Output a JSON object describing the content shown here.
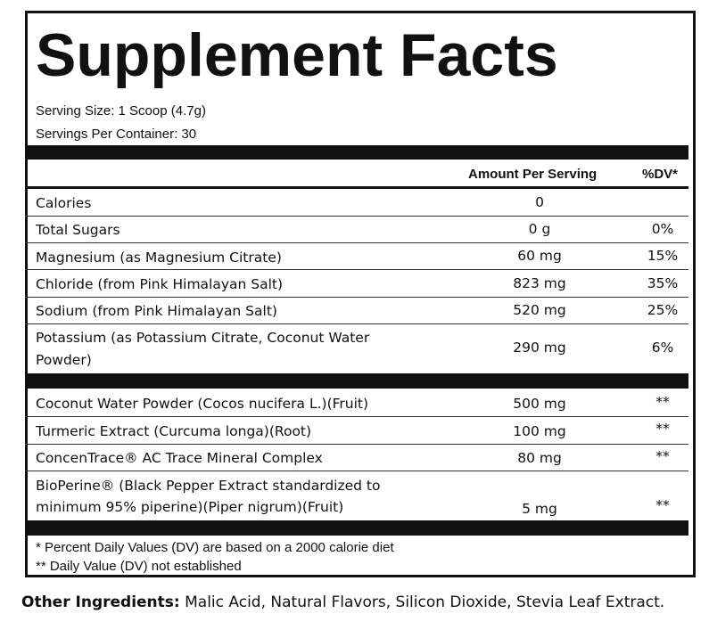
{
  "label": {
    "title": "Supplement Facts",
    "serving_size": "Serving Size: 1 Scoop (4.7g)",
    "servings_per_container": "Servings Per Container: 30",
    "header_amount": "Amount Per Serving",
    "header_dv": "%DV*",
    "nutrients": [
      {
        "name": "Calories",
        "amount": "0",
        "dv": ""
      },
      {
        "name": "Total Sugars",
        "amount": "0 g",
        "dv": "0%"
      },
      {
        "name": "Magnesium (as Magnesium Citrate)",
        "amount": "60 mg",
        "dv": "15%"
      },
      {
        "name": "Chloride (from Pink Himalayan Salt)",
        "amount": "823 mg",
        "dv": "35%"
      },
      {
        "name": "Sodium (from Pink Himalayan Salt)",
        "amount": "520 mg",
        "dv": "25%"
      },
      {
        "name_line1": "Potassium (as Potassium Citrate, Coconut Water",
        "name_line2": "Powder)",
        "amount": "290 mg",
        "dv": "6%"
      }
    ],
    "ingredients": [
      {
        "name": "Coconut Water Powder (Cocos nucifera L.)(Fruit)",
        "amount": "500 mg",
        "dv": "**"
      },
      {
        "name": "Turmeric Extract (Curcuma longa)(Root)",
        "amount": "100 mg",
        "dv": "**"
      },
      {
        "name": "ConcenTrace® AC Trace Mineral Complex",
        "amount": "80 mg",
        "dv": "**"
      },
      {
        "name_line1": "BioPerine® (Black Pepper Extract standardized to",
        "name_line2": "minimum 95% piperine)(Piper nigrum)(Fruit)",
        "amount": "5 mg",
        "dv": "**"
      }
    ],
    "footnote_1": "* Percent Daily Values (DV) are based on a 2000 calorie diet",
    "footnote_2": "** Daily Value (DV) not established"
  },
  "other_ingredients": {
    "label": "Other Ingredients:",
    "text": "Malic Acid, Natural Flavors, Silicon Dioxide, Stevia Leaf Extract."
  }
}
